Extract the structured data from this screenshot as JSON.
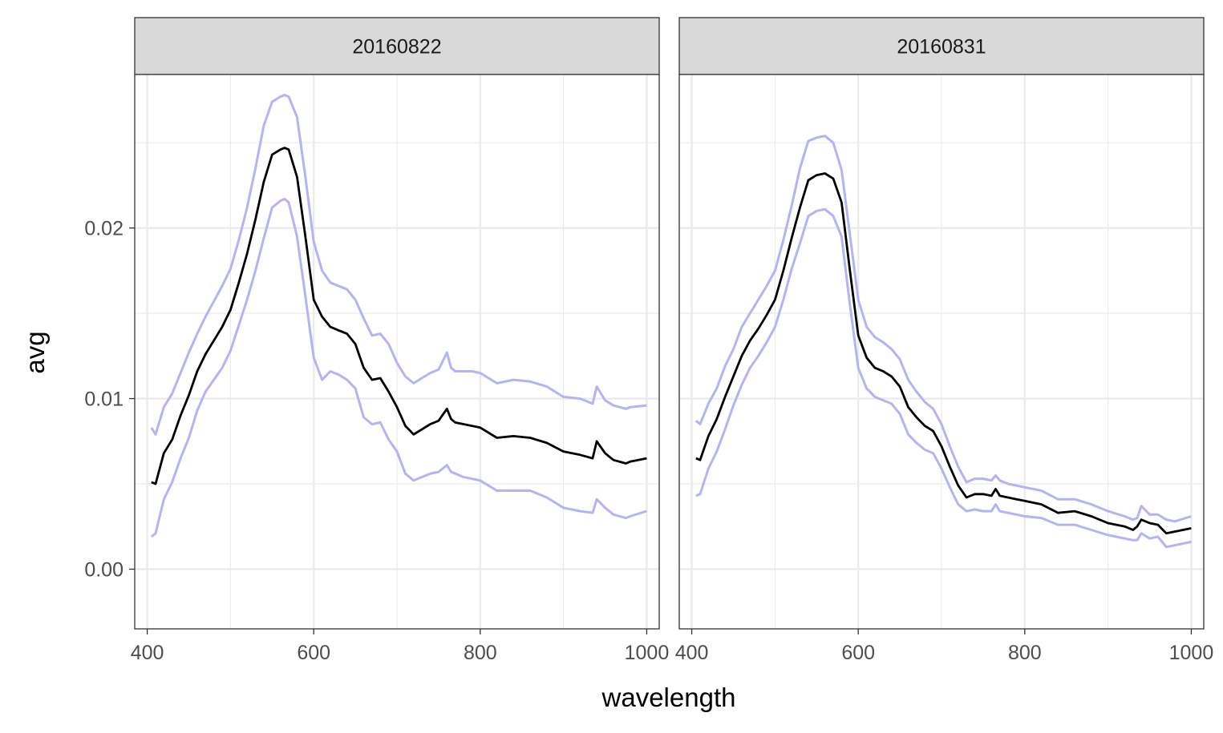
{
  "chart_data": {
    "type": "line",
    "xlabel": "wavelength",
    "ylabel": "avg",
    "xlim": [
      385,
      1015
    ],
    "ylim": [
      -0.0035,
      0.029
    ],
    "x_ticks": [
      400,
      600,
      800,
      1000
    ],
    "x_minor_ticks": [
      500,
      700,
      900
    ],
    "y_ticks": [
      0.0,
      0.01,
      0.02
    ],
    "y_tick_labels": [
      "0.00",
      "0.01",
      "0.02"
    ],
    "y_minor_ticks": [
      0.005,
      0.015,
      0.025
    ],
    "grid": true,
    "colors": {
      "mean": "#000000",
      "band": "#b3b3f5",
      "strip_bg": "#d9d9d9",
      "grid": "#ebebeb",
      "panel_border": "#333333"
    },
    "panels": [
      {
        "facet": "20160822",
        "series": [
          {
            "role": "mean",
            "x": [
              405,
              410,
              420,
              430,
              440,
              450,
              460,
              470,
              480,
              490,
              500,
              510,
              520,
              530,
              540,
              550,
              560,
              565,
              570,
              580,
              590,
              600,
              610,
              620,
              630,
              640,
              650,
              660,
              670,
              680,
              690,
              700,
              710,
              720,
              730,
              740,
              750,
              760,
              765,
              770,
              780,
              790,
              800,
              820,
              840,
              860,
              880,
              900,
              920,
              935,
              940,
              950,
              960,
              975,
              980,
              1000
            ],
            "y": [
              0.0051,
              0.005,
              0.0068,
              0.0076,
              0.009,
              0.0102,
              0.0116,
              0.0126,
              0.0134,
              0.0142,
              0.0152,
              0.0168,
              0.0185,
              0.0205,
              0.0227,
              0.0243,
              0.0246,
              0.0247,
              0.0246,
              0.023,
              0.0195,
              0.0158,
              0.0148,
              0.0142,
              0.014,
              0.0138,
              0.0132,
              0.0118,
              0.0111,
              0.0112,
              0.0104,
              0.0095,
              0.0084,
              0.0079,
              0.0082,
              0.0085,
              0.0087,
              0.0094,
              0.0088,
              0.0086,
              0.0085,
              0.0084,
              0.0083,
              0.0077,
              0.0078,
              0.0077,
              0.0074,
              0.0069,
              0.0067,
              0.0065,
              0.0075,
              0.0068,
              0.0064,
              0.0062,
              0.0063,
              0.0065
            ]
          },
          {
            "role": "upper",
            "x": [
              405,
              410,
              420,
              430,
              440,
              450,
              460,
              470,
              480,
              490,
              500,
              510,
              520,
              530,
              540,
              550,
              560,
              565,
              570,
              580,
              590,
              600,
              610,
              620,
              630,
              640,
              650,
              660,
              670,
              680,
              690,
              700,
              710,
              720,
              730,
              740,
              750,
              760,
              765,
              770,
              780,
              790,
              800,
              820,
              840,
              860,
              880,
              900,
              920,
              935,
              940,
              950,
              960,
              975,
              980,
              1000
            ],
            "y": [
              0.0083,
              0.0079,
              0.0095,
              0.0103,
              0.0115,
              0.0127,
              0.0138,
              0.0148,
              0.0157,
              0.0166,
              0.0176,
              0.0193,
              0.0212,
              0.0235,
              0.026,
              0.0274,
              0.0277,
              0.0278,
              0.0277,
              0.0265,
              0.023,
              0.0192,
              0.0175,
              0.0168,
              0.0166,
              0.0164,
              0.0158,
              0.0147,
              0.0137,
              0.0138,
              0.0132,
              0.0121,
              0.0113,
              0.0109,
              0.0112,
              0.0115,
              0.0117,
              0.0127,
              0.0118,
              0.0116,
              0.0116,
              0.0116,
              0.0115,
              0.0109,
              0.0111,
              0.011,
              0.0107,
              0.0101,
              0.01,
              0.0097,
              0.0107,
              0.0099,
              0.0096,
              0.0094,
              0.0095,
              0.0096
            ]
          },
          {
            "role": "lower",
            "x": [
              405,
              410,
              420,
              430,
              440,
              450,
              460,
              470,
              480,
              490,
              500,
              510,
              520,
              530,
              540,
              550,
              560,
              565,
              570,
              580,
              590,
              600,
              610,
              620,
              630,
              640,
              650,
              660,
              670,
              680,
              690,
              700,
              710,
              720,
              730,
              740,
              750,
              760,
              765,
              770,
              780,
              790,
              800,
              820,
              840,
              860,
              880,
              900,
              920,
              935,
              940,
              950,
              960,
              975,
              980,
              1000
            ],
            "y": [
              0.0019,
              0.0021,
              0.0041,
              0.0051,
              0.0065,
              0.0077,
              0.0093,
              0.0104,
              0.0111,
              0.0118,
              0.0128,
              0.0143,
              0.0158,
              0.0175,
              0.0194,
              0.0212,
              0.0216,
              0.0217,
              0.0215,
              0.0195,
              0.016,
              0.0124,
              0.0111,
              0.0116,
              0.0114,
              0.0111,
              0.0106,
              0.0089,
              0.0085,
              0.0086,
              0.0076,
              0.0069,
              0.0056,
              0.0052,
              0.0054,
              0.0056,
              0.0057,
              0.0061,
              0.0057,
              0.0056,
              0.0054,
              0.0053,
              0.0052,
              0.0046,
              0.0046,
              0.0046,
              0.0042,
              0.0036,
              0.0034,
              0.0033,
              0.0041,
              0.0036,
              0.0032,
              0.003,
              0.0031,
              0.0034
            ]
          }
        ]
      },
      {
        "facet": "20160831",
        "series": [
          {
            "role": "mean",
            "x": [
              405,
              410,
              420,
              430,
              440,
              450,
              460,
              470,
              480,
              490,
              500,
              510,
              520,
              530,
              540,
              550,
              560,
              570,
              580,
              590,
              600,
              610,
              620,
              630,
              640,
              650,
              660,
              670,
              680,
              690,
              700,
              710,
              720,
              730,
              740,
              750,
              760,
              765,
              770,
              780,
              790,
              800,
              820,
              840,
              860,
              880,
              900,
              920,
              930,
              935,
              940,
              950,
              960,
              970,
              980,
              1000
            ],
            "y": [
              0.0065,
              0.0064,
              0.0078,
              0.0088,
              0.0101,
              0.0113,
              0.0125,
              0.0134,
              0.0141,
              0.0149,
              0.0158,
              0.0175,
              0.0194,
              0.0212,
              0.0228,
              0.0231,
              0.0232,
              0.0229,
              0.0215,
              0.0175,
              0.0137,
              0.0124,
              0.0118,
              0.0116,
              0.0113,
              0.0107,
              0.0095,
              0.0089,
              0.0084,
              0.0081,
              0.0072,
              0.006,
              0.0049,
              0.0042,
              0.0044,
              0.0044,
              0.0043,
              0.0047,
              0.0043,
              0.0042,
              0.0041,
              0.004,
              0.0038,
              0.0033,
              0.0034,
              0.0031,
              0.0027,
              0.0025,
              0.0023,
              0.0025,
              0.0029,
              0.0027,
              0.0026,
              0.0021,
              0.0022,
              0.0024
            ]
          },
          {
            "role": "upper",
            "x": [
              405,
              410,
              420,
              430,
              440,
              450,
              460,
              470,
              480,
              490,
              500,
              510,
              520,
              530,
              540,
              550,
              560,
              570,
              580,
              590,
              600,
              610,
              620,
              630,
              640,
              650,
              660,
              670,
              680,
              690,
              700,
              710,
              720,
              730,
              740,
              750,
              760,
              765,
              770,
              780,
              790,
              800,
              820,
              840,
              860,
              880,
              900,
              920,
              930,
              935,
              940,
              950,
              960,
              970,
              980,
              1000
            ],
            "y": [
              0.0087,
              0.0085,
              0.0097,
              0.0106,
              0.0119,
              0.0129,
              0.0142,
              0.015,
              0.0158,
              0.0166,
              0.0175,
              0.0193,
              0.0213,
              0.0235,
              0.0251,
              0.0253,
              0.0254,
              0.025,
              0.0234,
              0.0196,
              0.0158,
              0.0142,
              0.0136,
              0.0133,
              0.0129,
              0.0123,
              0.0111,
              0.0104,
              0.0098,
              0.0094,
              0.0085,
              0.0072,
              0.006,
              0.0051,
              0.0053,
              0.0053,
              0.0052,
              0.0055,
              0.0052,
              0.005,
              0.0049,
              0.0048,
              0.0046,
              0.0041,
              0.0041,
              0.0038,
              0.0034,
              0.0031,
              0.0029,
              0.003,
              0.0037,
              0.0032,
              0.0032,
              0.0029,
              0.0028,
              0.0031
            ]
          },
          {
            "role": "lower",
            "x": [
              405,
              410,
              420,
              430,
              440,
              450,
              460,
              470,
              480,
              490,
              500,
              510,
              520,
              530,
              540,
              550,
              560,
              570,
              580,
              590,
              600,
              610,
              620,
              630,
              640,
              650,
              660,
              670,
              680,
              690,
              700,
              710,
              720,
              730,
              740,
              750,
              760,
              765,
              770,
              780,
              790,
              800,
              820,
              840,
              860,
              880,
              900,
              920,
              930,
              935,
              940,
              950,
              960,
              970,
              980,
              1000
            ],
            "y": [
              0.0043,
              0.0044,
              0.0059,
              0.0069,
              0.0082,
              0.0096,
              0.0108,
              0.0118,
              0.0125,
              0.0133,
              0.0142,
              0.0158,
              0.0176,
              0.0191,
              0.0207,
              0.021,
              0.0211,
              0.0207,
              0.0195,
              0.0155,
              0.0118,
              0.0106,
              0.0101,
              0.0099,
              0.0097,
              0.0091,
              0.0079,
              0.0074,
              0.007,
              0.0068,
              0.0059,
              0.0048,
              0.0038,
              0.0034,
              0.0035,
              0.0034,
              0.0034,
              0.0038,
              0.0034,
              0.0033,
              0.0032,
              0.0031,
              0.003,
              0.0026,
              0.0026,
              0.0023,
              0.002,
              0.0018,
              0.0017,
              0.0017,
              0.0021,
              0.0018,
              0.0019,
              0.0013,
              0.0014,
              0.0016
            ]
          }
        ]
      }
    ]
  }
}
